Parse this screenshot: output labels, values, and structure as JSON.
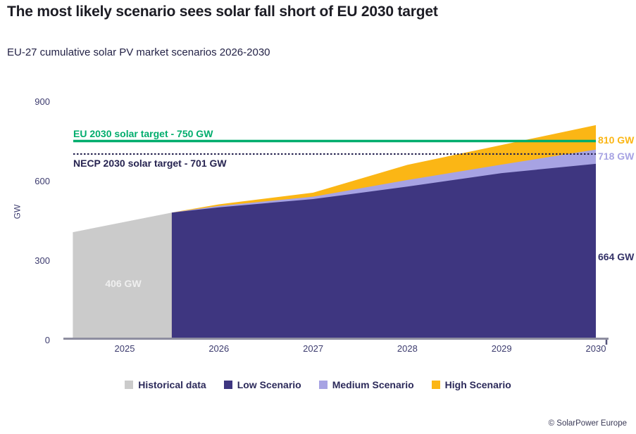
{
  "header": {
    "title": "The most likely scenario sees solar fall short of EU 2030 target",
    "subtitle": "EU-27 cumulative solar PV market scenarios 2026-2030"
  },
  "chart_data": {
    "type": "area",
    "title": "EU-27 cumulative solar PV market scenarios 2026-2030",
    "ylabel": "GW",
    "ylim": [
      0,
      900
    ],
    "yticks": [
      0,
      300,
      600,
      900
    ],
    "xticks": [
      2025,
      2026,
      2027,
      2028,
      2029,
      2030
    ],
    "grid": false,
    "legend_position": "bottom",
    "historical": {
      "name": "Historical data",
      "color": "#cbcbcb",
      "x": [
        2024.45,
        2025.5
      ],
      "values": [
        406,
        480
      ],
      "area_label": "406 GW"
    },
    "x": [
      2025.5,
      2026,
      2027,
      2028,
      2029,
      2030
    ],
    "series": [
      {
        "name": "Low Scenario",
        "color": "#3e3680",
        "values": [
          480,
          500,
          531,
          578,
          629,
          664
        ]
      },
      {
        "name": "Medium Scenario",
        "color": "#a7a3e3",
        "values": [
          480,
          505,
          540,
          603,
          661,
          718
        ]
      },
      {
        "name": "High Scenario",
        "color": "#fbb615",
        "values": [
          480,
          511,
          555,
          660,
          735,
          810
        ]
      }
    ],
    "target_lines": [
      {
        "label": "EU 2030 solar target - 750 GW",
        "value": 750,
        "color": "#00ad6d",
        "style": "solid"
      },
      {
        "label": "NECP 2030 solar target - 701 GW",
        "value": 701,
        "color": "#262350",
        "style": "dotted"
      }
    ],
    "end_labels": [
      {
        "text": "810 GW",
        "value": 810,
        "color": "#fbb615",
        "top": 191
      },
      {
        "text": "718 GW",
        "value": 718,
        "color": "#a7a3e3",
        "top": 214
      },
      {
        "text": "664 GW",
        "value": 664,
        "color": "#343268",
        "top": 357
      }
    ],
    "axis_color": "#8e8ea0"
  },
  "legend": {
    "items": [
      {
        "label": "Historical data",
        "color": "#cbcbcb"
      },
      {
        "label": "Low Scenario",
        "color": "#3e3680"
      },
      {
        "label": "Medium Scenario",
        "color": "#a7a3e3"
      },
      {
        "label": "High Scenario",
        "color": "#fbb615"
      }
    ]
  },
  "footer": {
    "credit": "© SolarPower Europe"
  }
}
